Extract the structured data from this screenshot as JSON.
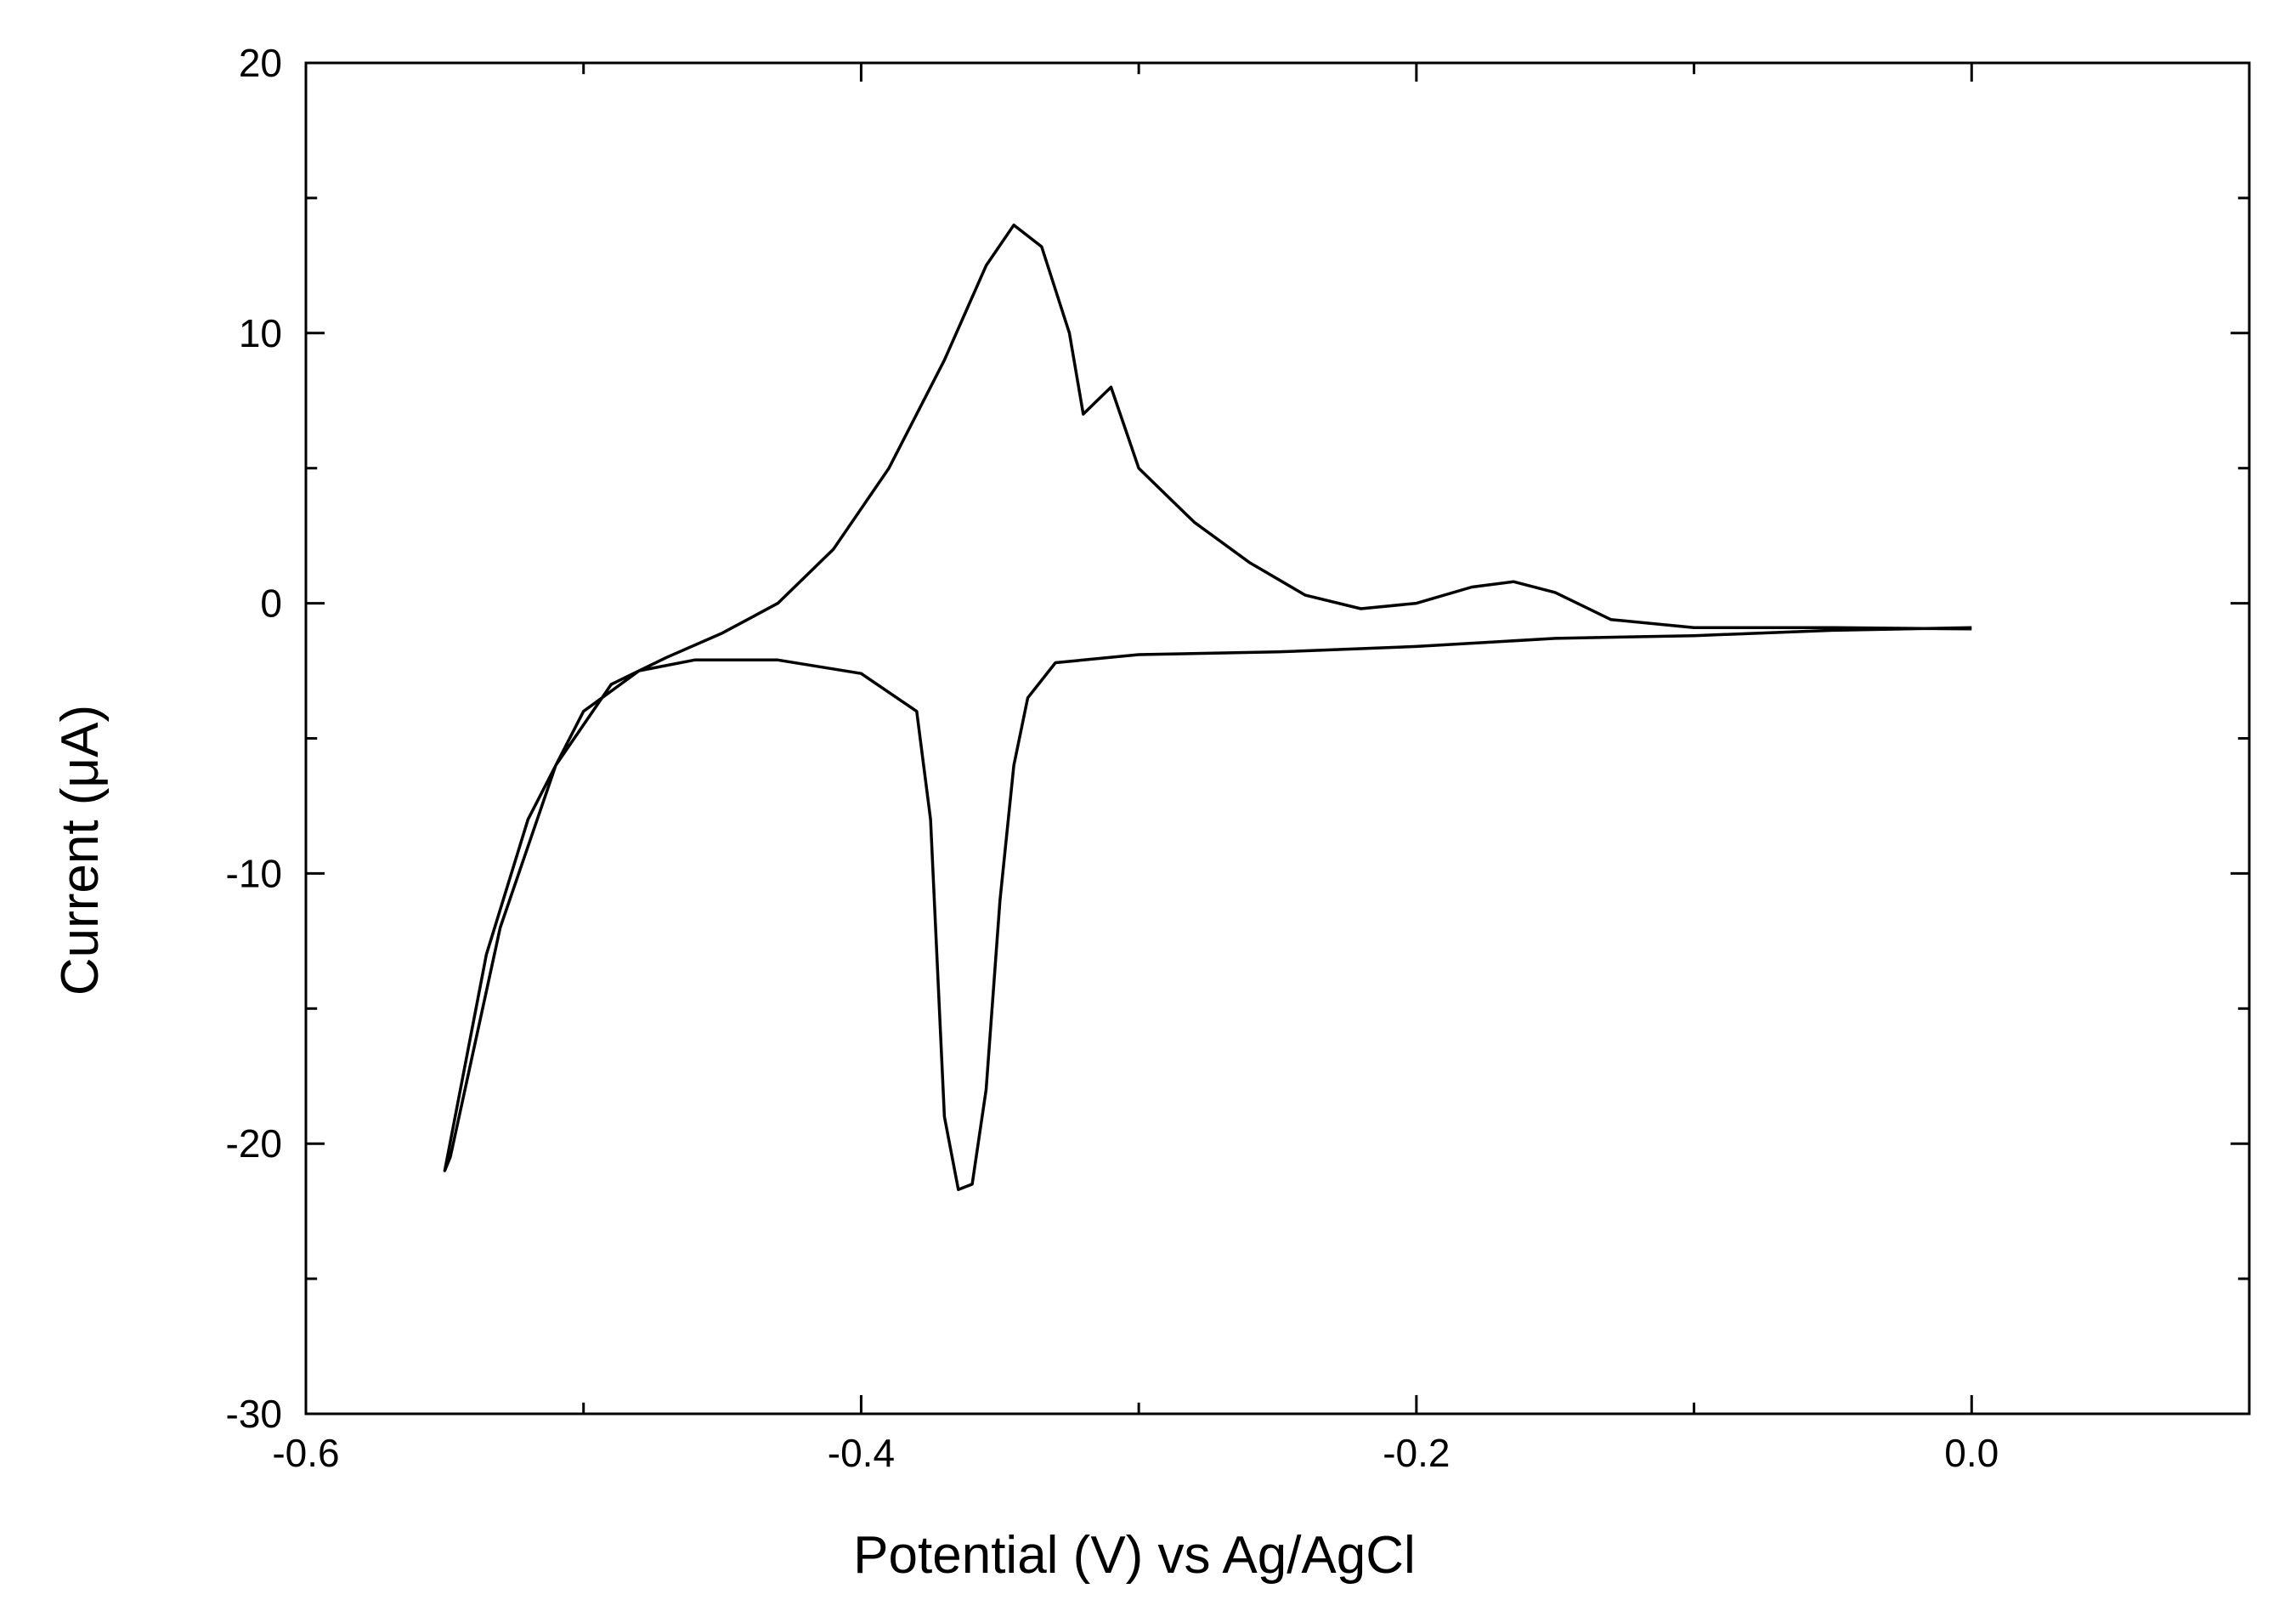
{
  "chart_data": {
    "type": "line",
    "xlabel": "Potential (V) vs Ag/AgCl",
    "ylabel": "Current (μA)",
    "xlim": [
      -0.6,
      0.1
    ],
    "ylim": [
      -30,
      20
    ],
    "xticks": [
      -0.6,
      -0.4,
      -0.2,
      {
        "value": 0,
        "label": "0.0"
      }
    ],
    "xminorticks": [
      -0.5,
      -0.3,
      -0.1,
      0.1
    ],
    "yticks": [
      -30,
      -20,
      -10,
      0,
      10,
      20
    ],
    "yminorticks": [
      -25,
      -15,
      -5,
      5,
      15
    ],
    "series": [
      {
        "color": "#000000",
        "x": [
          0.0,
          -0.05,
          -0.1,
          -0.15,
          -0.2,
          -0.25,
          -0.3,
          -0.33,
          -0.34,
          -0.345,
          -0.35,
          -0.355,
          -0.36,
          -0.365,
          -0.37,
          -0.375,
          -0.38,
          -0.4,
          -0.43,
          -0.46,
          -0.48,
          -0.5,
          -0.52,
          -0.535,
          -0.55,
          -0.548,
          -0.53,
          -0.51,
          -0.49,
          -0.47,
          -0.45,
          -0.43,
          -0.41,
          -0.39,
          -0.37,
          -0.355,
          -0.345,
          -0.335,
          -0.325,
          -0.32,
          -0.315,
          -0.31,
          -0.305,
          -0.3,
          -0.28,
          -0.26,
          -0.24,
          -0.22,
          -0.2,
          -0.18,
          -0.165,
          -0.15,
          -0.13,
          -0.1,
          -0.05,
          0.0
        ],
        "values": [
          -0.9,
          -1.0,
          -1.2,
          -1.3,
          -1.6,
          -1.8,
          -1.9,
          -2.2,
          -3.5,
          -6,
          -11,
          -18,
          -21.5,
          -21.7,
          -19,
          -8,
          -4,
          -2.6,
          -2.1,
          -2.1,
          -2.5,
          -4,
          -8,
          -13,
          -21,
          -20.5,
          -12,
          -6,
          -3,
          -2,
          -1.1,
          0,
          2,
          5,
          9,
          12.5,
          14,
          13.2,
          10,
          7,
          7.5,
          8,
          6.5,
          5,
          3,
          1.5,
          0.3,
          -0.2,
          0,
          0.6,
          0.8,
          0.4,
          -0.6,
          -0.9,
          -0.9,
          -0.95
        ]
      }
    ]
  }
}
